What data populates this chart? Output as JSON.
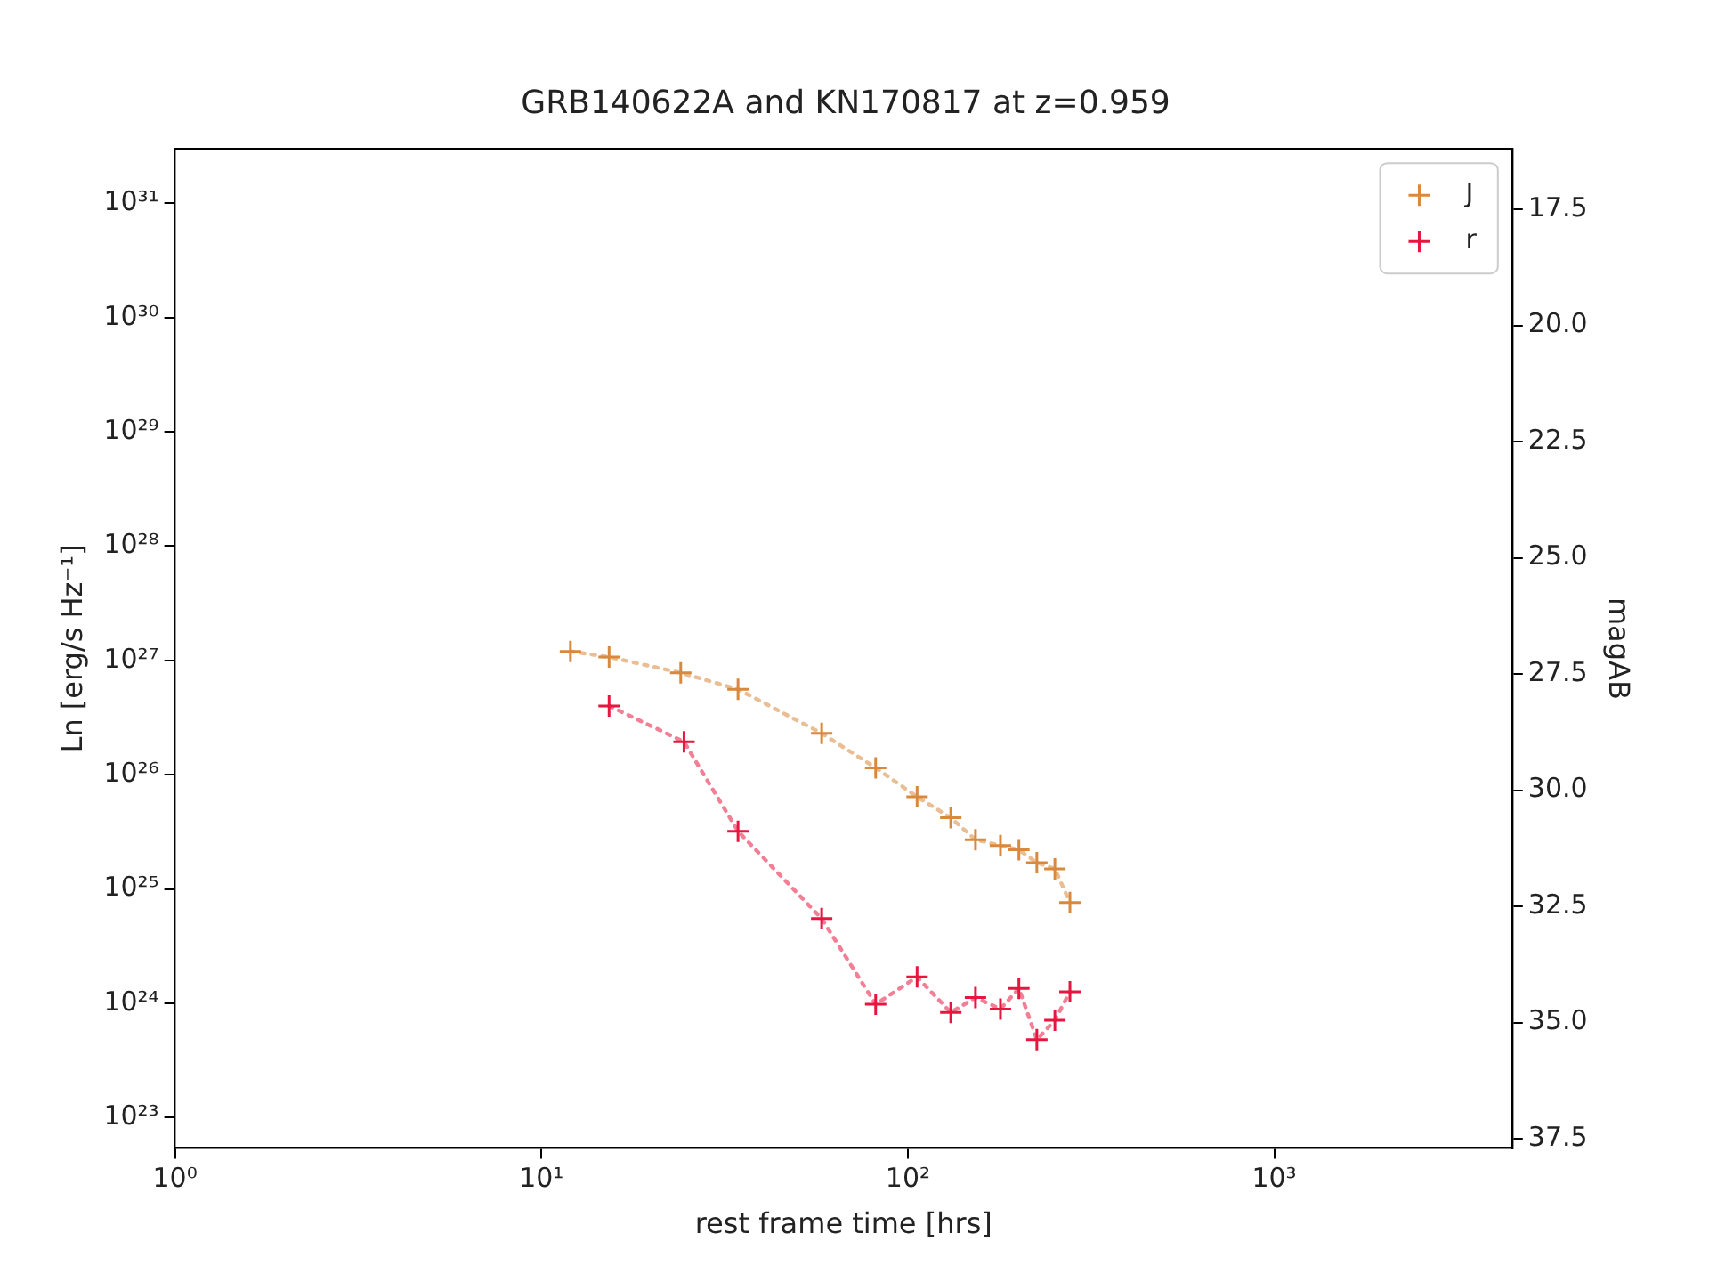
{
  "chart_data": {
    "type": "line",
    "title": "GRB140622A and KN170817 at z=0.959",
    "xlabel": "rest frame time [hrs]",
    "ylabel": "Ln [erg/s Hz⁻¹]",
    "y2label": "magAB",
    "log": "xy",
    "grid": false,
    "legend": "top right",
    "marker": "cross",
    "line_style": "dotted",
    "xlim": [
      1,
      4460
    ],
    "xticks": [
      {
        "value": 1,
        "label": "10⁰"
      },
      {
        "value": 10,
        "label": "10¹"
      },
      {
        "value": 100,
        "label": "10²"
      },
      {
        "value": 1000,
        "label": "10³"
      }
    ],
    "ylim": [
      5.4e+22,
      3e+31
    ],
    "yticks": [
      {
        "value": 1e+23,
        "label": "10²³"
      },
      {
        "value": 1e+24,
        "label": "10²⁴"
      },
      {
        "value": 1e+25,
        "label": "10²⁵"
      },
      {
        "value": 1e+26,
        "label": "10²⁶"
      },
      {
        "value": 1e+27,
        "label": "10²⁷"
      },
      {
        "value": 1e+28,
        "label": "10²⁸"
      },
      {
        "value": 1e+29,
        "label": "10²⁹"
      },
      {
        "value": 1e+30,
        "label": "10³⁰"
      },
      {
        "value": 1e+31,
        "label": "10³¹"
      }
    ],
    "y2lim": [
      37.7,
      16.2
    ],
    "y2ticks": [
      17.5,
      {
        "value": 20,
        "label": "20.0"
      },
      22.5,
      {
        "value": 25,
        "label": "25.0"
      },
      27.5,
      {
        "value": 30,
        "label": "30.0"
      },
      32.5,
      {
        "value": 35,
        "label": "35.0"
      },
      37.5
    ],
    "series": [
      {
        "name": "J",
        "color": "#d9893d",
        "x": [
          12.0,
          15.3,
          24.0,
          34.4,
          58.2,
          81.7,
          106,
          131,
          153,
          179,
          201,
          225,
          252,
          277
        ],
        "values": [
          1.2e+27,
          1.07e+27,
          7.8e+26,
          5.6e+26,
          2.3e+26,
          1.15e+26,
          6.4e+25,
          4.2e+25,
          2.7e+25,
          2.4e+25,
          2.2e+25,
          1.7e+25,
          1.5e+25,
          7.6e+24
        ]
      },
      {
        "name": "r",
        "color": "#e8163f",
        "x": [
          15.3,
          24.5,
          34.4,
          58.2,
          81.7,
          106,
          131,
          153,
          179,
          201,
          225,
          252,
          277
        ],
        "values": [
          4e+26,
          1.94e+26,
          3.2e+25,
          5.5e+24,
          9.8e+23,
          1.7e+24,
          8.3e+23,
          1.12e+24,
          8.9e+23,
          1.35e+24,
          4.8e+23,
          7.1e+23,
          1.26e+24
        ]
      }
    ]
  }
}
